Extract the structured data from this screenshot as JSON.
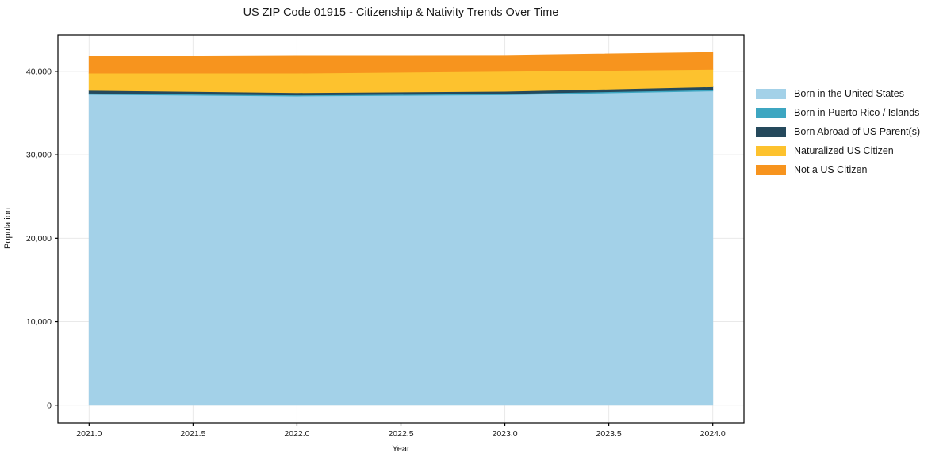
{
  "chart_data": {
    "type": "area",
    "stacked": true,
    "title": "US ZIP Code 01915 - Citizenship & Nativity Trends Over Time",
    "xlabel": "Year",
    "ylabel": "Population",
    "x": [
      2021,
      2022,
      2023,
      2024
    ],
    "series": [
      {
        "name": "Born in the United States",
        "color": "#A3D1E8",
        "values": [
          37250,
          37050,
          37200,
          37650
        ]
      },
      {
        "name": "Born in Puerto Rico / Islands",
        "color": "#3DA6C1",
        "values": [
          140,
          120,
          130,
          150
        ]
      },
      {
        "name": "Born Abroad of US Parent(s)",
        "color": "#25495C",
        "values": [
          330,
          280,
          280,
          350
        ]
      },
      {
        "name": "Naturalized US Citizen",
        "color": "#FDC22E",
        "values": [
          2080,
          2350,
          2400,
          2100
        ]
      },
      {
        "name": "Not a US Citizen",
        "color": "#F7941E",
        "values": [
          1980,
          2090,
          1890,
          2000
        ]
      }
    ],
    "xlim": [
      2020.85,
      2024.15
    ],
    "ylim": [
      -2112,
      44362
    ],
    "xticks": [
      2021.0,
      2021.5,
      2022.0,
      2022.5,
      2023.0,
      2023.5,
      2024.0
    ],
    "yticks": [
      0,
      10000,
      20000,
      30000,
      40000
    ],
    "grid": true,
    "gridline_color": "#e9e9e9",
    "spine_color": "#000000",
    "legend_position": "right"
  }
}
